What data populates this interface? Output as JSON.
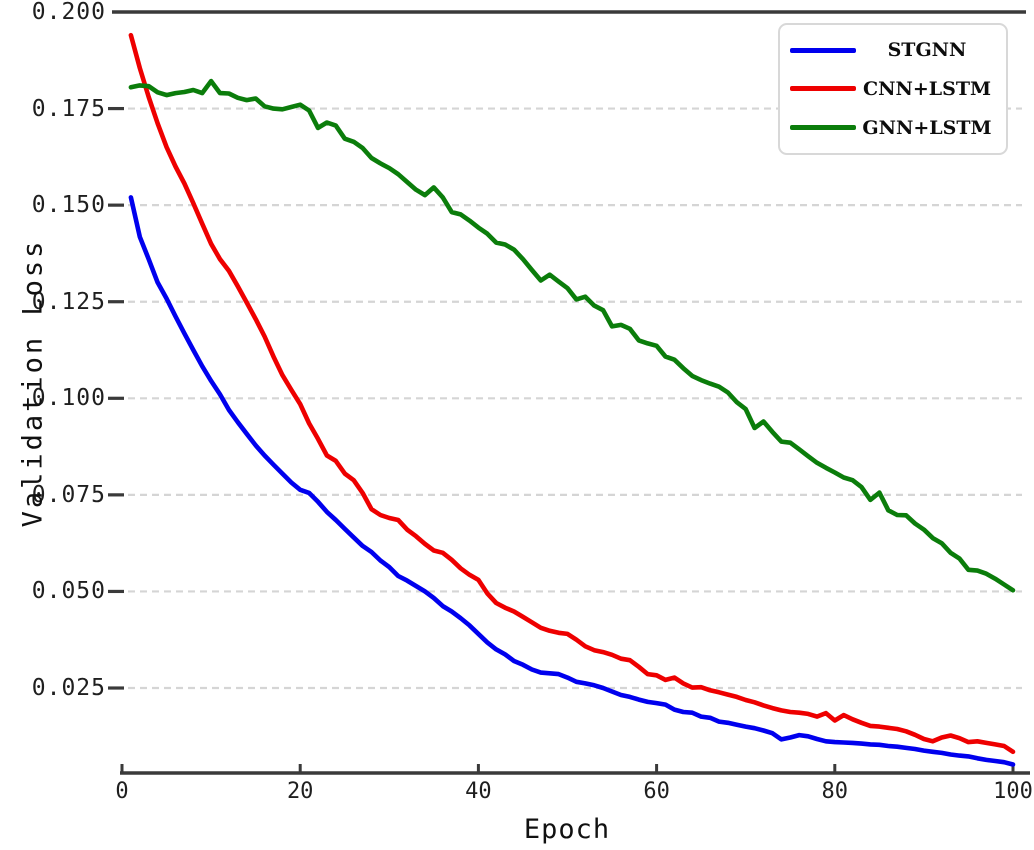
{
  "chart_data": {
    "type": "line",
    "title": "",
    "xlabel": "Epoch",
    "ylabel": "Validation Loss",
    "xlim": [
      0,
      100
    ],
    "ylim": [
      0.003,
      0.2
    ],
    "x_ticks": [
      0,
      20,
      40,
      60,
      80,
      100
    ],
    "y_tick_values": [
      0.2,
      0.175,
      0.15,
      0.125,
      0.1,
      0.075,
      0.05,
      0.025
    ],
    "y_tick_labels": [
      "0.200",
      "0.175",
      "0.150",
      "0.125",
      "0.100",
      "0.075",
      "0.050",
      "0.025"
    ],
    "grid": "horizontal-dashed",
    "legend_position": "upper-right",
    "colors": {
      "axis": "#3a3a3a",
      "grid": "#d5d5d5",
      "background": "#ffffff",
      "text": "#1f1f1f"
    },
    "x_start": 1,
    "x_step": 1,
    "series": [
      {
        "name": "STGNN",
        "color": "#0000ee",
        "values": [
          0.152,
          0.1418,
          0.136,
          0.13,
          0.1258,
          0.1212,
          0.1168,
          0.1125,
          0.1083,
          0.1045,
          0.101,
          0.097,
          0.0938,
          0.0908,
          0.0878,
          0.0852,
          0.0828,
          0.0805,
          0.0782,
          0.0763,
          0.0755,
          0.0732,
          0.0706,
          0.0685,
          0.0662,
          0.064,
          0.0618,
          0.0602,
          0.058,
          0.0563,
          0.054,
          0.0528,
          0.0514,
          0.05,
          0.0483,
          0.0462,
          0.0448,
          0.0431,
          0.0412,
          0.039,
          0.0368,
          0.035,
          0.0337,
          0.032,
          0.031,
          0.0298,
          0.029,
          0.0288,
          0.0286,
          0.0277,
          0.0266,
          0.0262,
          0.0257,
          0.025,
          0.0241,
          0.0232,
          0.0227,
          0.022,
          0.0214,
          0.0211,
          0.0207,
          0.0194,
          0.0188,
          0.0186,
          0.0176,
          0.0173,
          0.0163,
          0.016,
          0.0155,
          0.015,
          0.0146,
          0.014,
          0.0133,
          0.0117,
          0.0122,
          0.0128,
          0.0125,
          0.0118,
          0.0112,
          0.011,
          0.0109,
          0.0108,
          0.0106,
          0.0104,
          0.0103,
          0.01,
          0.0098,
          0.0095,
          0.0092,
          0.0088,
          0.0085,
          0.0082,
          0.0078,
          0.0075,
          0.0073,
          0.0068,
          0.0064,
          0.0061,
          0.0058,
          0.0052
        ]
      },
      {
        "name": "CNN+LSTM",
        "color": "#ee0000",
        "values": [
          0.194,
          0.1855,
          0.178,
          0.1712,
          0.165,
          0.16,
          0.1556,
          0.1505,
          0.1452,
          0.14,
          0.136,
          0.133,
          0.129,
          0.1248,
          0.1205,
          0.116,
          0.1108,
          0.106,
          0.1022,
          0.0985,
          0.0935,
          0.0895,
          0.0852,
          0.0838,
          0.0805,
          0.0788,
          0.0755,
          0.0713,
          0.0698,
          0.069,
          0.0685,
          0.066,
          0.0643,
          0.0623,
          0.0606,
          0.06,
          0.0582,
          0.056,
          0.0543,
          0.053,
          0.0495,
          0.047,
          0.0458,
          0.0448,
          0.0434,
          0.042,
          0.0406,
          0.0398,
          0.0393,
          0.039,
          0.0375,
          0.0358,
          0.0348,
          0.0343,
          0.0336,
          0.0326,
          0.0322,
          0.0305,
          0.0286,
          0.0283,
          0.0271,
          0.0277,
          0.0262,
          0.0251,
          0.0252,
          0.0244,
          0.0239,
          0.0233,
          0.0227,
          0.0219,
          0.0213,
          0.0205,
          0.0198,
          0.0192,
          0.0188,
          0.0186,
          0.0183,
          0.0176,
          0.0185,
          0.0166,
          0.018,
          0.0169,
          0.016,
          0.0152,
          0.015,
          0.0147,
          0.0144,
          0.0138,
          0.0129,
          0.0118,
          0.0112,
          0.0122,
          0.0127,
          0.012,
          0.011,
          0.0112,
          0.0108,
          0.0104,
          0.01,
          0.0085
        ]
      },
      {
        "name": "GNN+LSTM",
        "color": "#0b7d0b",
        "values": [
          0.1805,
          0.181,
          0.1808,
          0.1792,
          0.1785,
          0.179,
          0.1793,
          0.1798,
          0.179,
          0.1821,
          0.179,
          0.1789,
          0.1778,
          0.1772,
          0.1776,
          0.1756,
          0.175,
          0.1748,
          0.1754,
          0.176,
          0.1745,
          0.17,
          0.1714,
          0.1706,
          0.1672,
          0.1664,
          0.1648,
          0.1622,
          0.1608,
          0.1596,
          0.158,
          0.156,
          0.154,
          0.1526,
          0.1546,
          0.152,
          0.1482,
          0.1476,
          0.146,
          0.1442,
          0.1426,
          0.1403,
          0.1398,
          0.1385,
          0.136,
          0.1332,
          0.1305,
          0.132,
          0.1302,
          0.1285,
          0.1256,
          0.1263,
          0.124,
          0.1228,
          0.1186,
          0.119,
          0.118,
          0.115,
          0.1142,
          0.1136,
          0.1108,
          0.11,
          0.1078,
          0.1058,
          0.1047,
          0.1038,
          0.103,
          0.1015,
          0.099,
          0.0972,
          0.0923,
          0.094,
          0.0913,
          0.0888,
          0.0885,
          0.0868,
          0.085,
          0.0833,
          0.082,
          0.0808,
          0.0795,
          0.0788,
          0.077,
          0.0737,
          0.0756,
          0.071,
          0.0698,
          0.0697,
          0.0676,
          0.066,
          0.0638,
          0.0625,
          0.06,
          0.0585,
          0.0556,
          0.0554,
          0.0546,
          0.0533,
          0.0518,
          0.0503
        ]
      }
    ]
  }
}
